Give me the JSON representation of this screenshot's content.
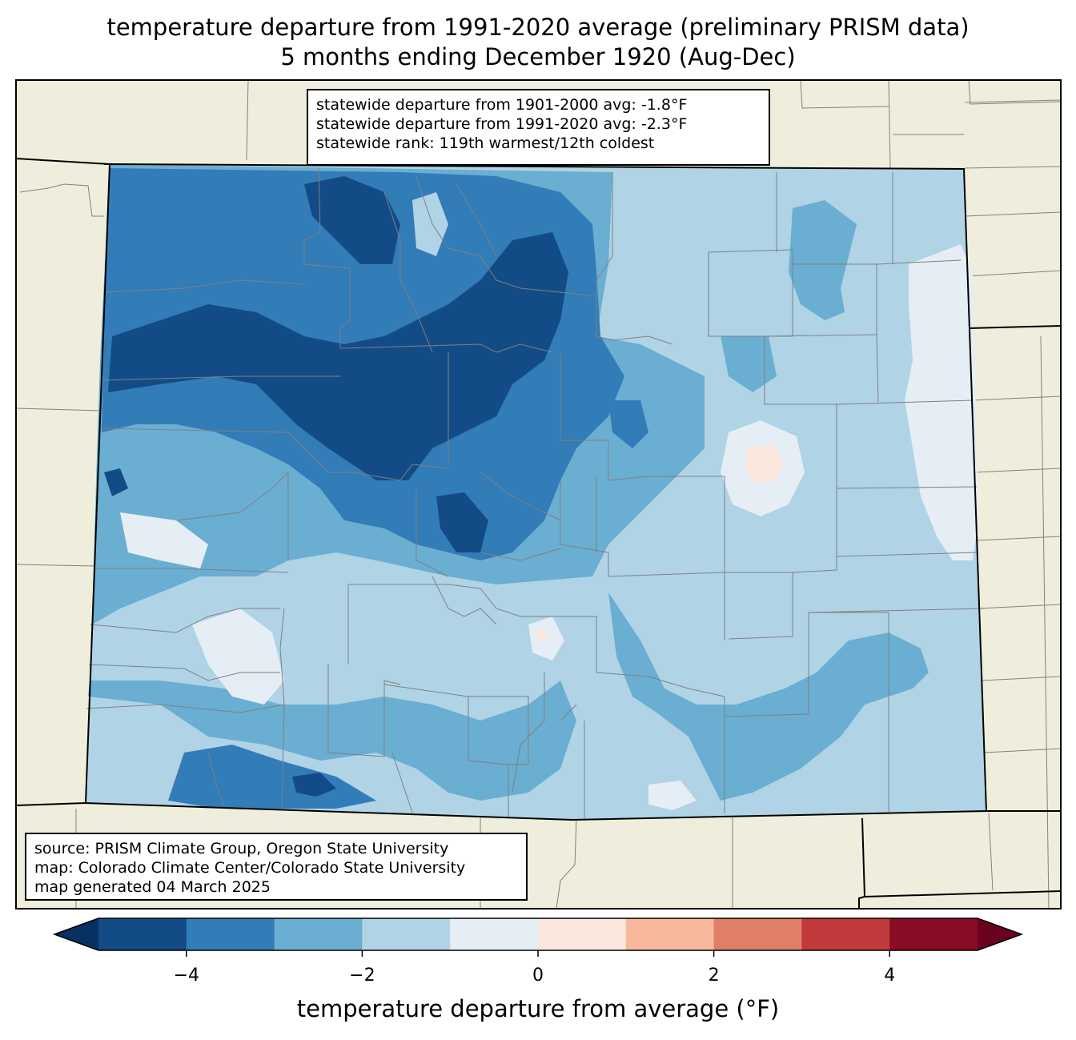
{
  "title": {
    "line1": "temperature departure from 1991-2020 average (preliminary PRISM data)",
    "line2": "5 months ending December 1920 (Aug-Dec)"
  },
  "stats": {
    "line1": "statewide departure from 1901-2000 avg: -1.8°F",
    "line2": "statewide departure from 1991-2020 avg: -2.3°F",
    "line3": "statewide rank: 119th warmest/12th coldest"
  },
  "credits": {
    "line1": "source: PRISM Climate Group, Oregon State University",
    "line2": "map: Colorado Climate Center/Colorado State University",
    "line3": "map generated 04 March 2025"
  },
  "colorbar": {
    "label": "temperature departure from average (°F)",
    "ticks": [
      "−4",
      "−2",
      "0",
      "2",
      "4"
    ],
    "tick_values": [
      -4,
      -2,
      0,
      2,
      4
    ],
    "range": [
      -5,
      5
    ],
    "bins": [
      {
        "from": -5,
        "to": -4,
        "color": "#134b87"
      },
      {
        "from": -4,
        "to": -3,
        "color": "#327cb8"
      },
      {
        "from": -3,
        "to": -2,
        "color": "#6aaed2"
      },
      {
        "from": -2,
        "to": -1,
        "color": "#b0d3e6"
      },
      {
        "from": -1,
        "to": 0,
        "color": "#e5eef4"
      },
      {
        "from": 0,
        "to": 1,
        "color": "#fae6dc"
      },
      {
        "from": 1,
        "to": 2,
        "color": "#f7b89c"
      },
      {
        "from": 2,
        "to": 3,
        "color": "#e07f68"
      },
      {
        "from": 3,
        "to": 4,
        "color": "#c0393b"
      },
      {
        "from": 4,
        "to": 5,
        "color": "#880c23"
      }
    ],
    "under_color": "#073063",
    "over_color": "#6b0220"
  },
  "colors": {
    "land": "#efeedc",
    "border": "#000000",
    "county": "#808080"
  }
}
